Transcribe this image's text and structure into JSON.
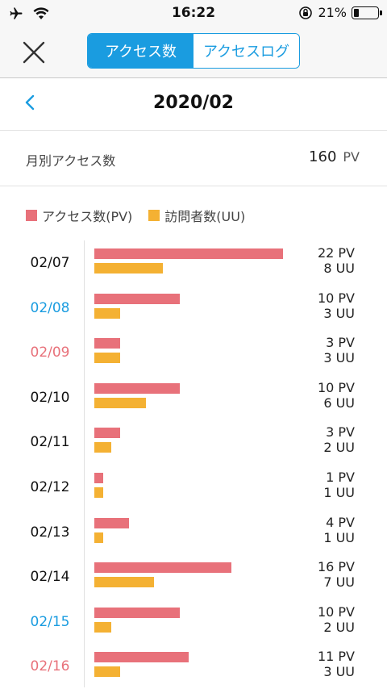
{
  "status_bar": {
    "time": "16:22",
    "battery": "21%",
    "battery_level": 0.21
  },
  "header": {
    "tabs": [
      {
        "label": "アクセス数",
        "selected": true
      },
      {
        "label": "アクセスログ",
        "selected": false
      }
    ]
  },
  "month": {
    "title": "2020/02"
  },
  "summary": {
    "label": "月別アクセス数",
    "total": "160",
    "unit": "PV"
  },
  "legend": {
    "pv": "アクセス数(PV)",
    "uu": "訪問者数(UU)"
  },
  "colors": {
    "accent": "#1a9ce0",
    "pv": "#e8717a",
    "uu": "#f4b133",
    "weekday": "#111111",
    "saturday": "#1a9ce0",
    "sunday": "#e8717a"
  },
  "chart_data": {
    "type": "bar",
    "categories": [
      "02/07",
      "02/08",
      "02/09",
      "02/10",
      "02/11",
      "02/12",
      "02/13",
      "02/14",
      "02/15",
      "02/16"
    ],
    "series": [
      {
        "name": "アクセス数(PV)",
        "values": [
          22,
          10,
          3,
          10,
          3,
          1,
          4,
          16,
          10,
          11
        ]
      },
      {
        "name": "訪問者数(UU)",
        "values": [
          8,
          3,
          3,
          6,
          2,
          1,
          1,
          7,
          2,
          3
        ]
      }
    ],
    "day_type": [
      "weekday",
      "saturday",
      "sunday",
      "weekday",
      "weekday",
      "weekday",
      "weekday",
      "weekday",
      "saturday",
      "sunday"
    ],
    "pv_unit": "PV",
    "uu_unit": "UU",
    "xlim": [
      0,
      22
    ]
  }
}
